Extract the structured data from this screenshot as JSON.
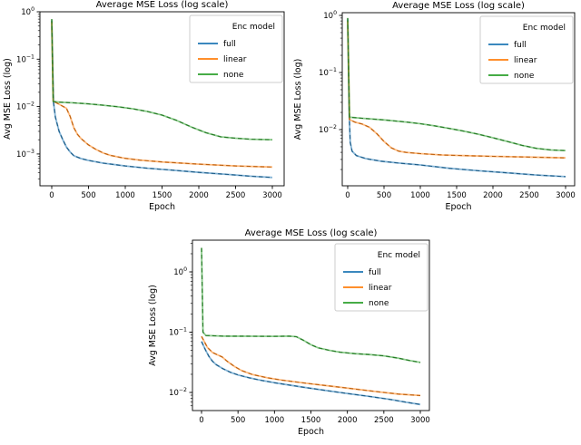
{
  "figure": {
    "background": "#ffffff"
  },
  "colors": {
    "full": "#1f77b4",
    "linear": "#ff7f0e",
    "none": "#2ca02c"
  },
  "chart_data": [
    {
      "type": "line",
      "title": "Average MSE Loss (log scale)",
      "xlabel": "Epoch",
      "ylabel": "Avg MSE Loss (log)",
      "yscale": "log",
      "grid": false,
      "xticks": [
        0,
        500,
        1000,
        1500,
        2000,
        2500,
        3000
      ],
      "ytick_exponents": [
        0,
        -1,
        -2,
        -3
      ],
      "xlim": [
        0,
        3000
      ],
      "ylim": [
        0.00021,
        1.0
      ],
      "legend": {
        "title": "Enc model",
        "position": "upper right"
      },
      "series": [
        {
          "name": "full",
          "color": "#1f77b4",
          "points": [
            [
              0,
              0.65
            ],
            [
              15,
              0.06
            ],
            [
              25,
              0.012
            ],
            [
              50,
              0.006
            ],
            [
              100,
              0.003
            ],
            [
              150,
              0.002
            ],
            [
              200,
              0.0014
            ],
            [
              250,
              0.0011
            ],
            [
              300,
              0.00092
            ],
            [
              400,
              0.0008
            ],
            [
              500,
              0.00073
            ],
            [
              700,
              0.00064
            ],
            [
              1000,
              0.00056
            ],
            [
              1300,
              0.0005
            ],
            [
              1600,
              0.00046
            ],
            [
              2000,
              0.00041
            ],
            [
              2400,
              0.00037
            ],
            [
              2700,
              0.00034
            ],
            [
              3000,
              0.00032
            ]
          ]
        },
        {
          "name": "linear",
          "color": "#ff7f0e",
          "points": [
            [
              0,
              0.62
            ],
            [
              20,
              0.013
            ],
            [
              100,
              0.0112
            ],
            [
              200,
              0.0092
            ],
            [
              250,
              0.0062
            ],
            [
              300,
              0.0036
            ],
            [
              350,
              0.0026
            ],
            [
              400,
              0.0021
            ],
            [
              500,
              0.00155
            ],
            [
              600,
              0.00125
            ],
            [
              700,
              0.00105
            ],
            [
              800,
              0.00093
            ],
            [
              1000,
              0.00081
            ],
            [
              1200,
              0.00074
            ],
            [
              1500,
              0.00068
            ],
            [
              2000,
              0.00061
            ],
            [
              2500,
              0.00056
            ],
            [
              3000,
              0.00053
            ]
          ]
        },
        {
          "name": "none",
          "color": "#2ca02c",
          "points": [
            [
              0,
              0.7
            ],
            [
              20,
              0.0128
            ],
            [
              100,
              0.0124
            ],
            [
              300,
              0.012
            ],
            [
              500,
              0.0114
            ],
            [
              700,
              0.0107
            ],
            [
              900,
              0.0099
            ],
            [
              1100,
              0.009
            ],
            [
              1300,
              0.0079
            ],
            [
              1500,
              0.0066
            ],
            [
              1700,
              0.0051
            ],
            [
              1900,
              0.0037
            ],
            [
              2100,
              0.0028
            ],
            [
              2300,
              0.0023
            ],
            [
              2500,
              0.00215
            ],
            [
              2700,
              0.00205
            ],
            [
              3000,
              0.002
            ]
          ]
        }
      ]
    },
    {
      "type": "line",
      "title": "Average MSE Loss (log scale)",
      "xlabel": "Epoch",
      "ylabel": "Avg MSE Loss (log)",
      "yscale": "log",
      "grid": false,
      "xticks": [
        0,
        500,
        1000,
        1500,
        2000,
        2500,
        3000
      ],
      "ytick_exponents": [
        0,
        -1,
        -2
      ],
      "xlim": [
        0,
        3000
      ],
      "ylim": [
        0.0011,
        1.1
      ],
      "legend": {
        "title": "Enc model",
        "position": "upper right"
      },
      "series": [
        {
          "name": "full",
          "color": "#1f77b4",
          "points": [
            [
              0,
              0.85
            ],
            [
              20,
              0.02
            ],
            [
              35,
              0.006
            ],
            [
              60,
              0.0042
            ],
            [
              120,
              0.0035
            ],
            [
              250,
              0.0031
            ],
            [
              450,
              0.0028
            ],
            [
              700,
              0.0026
            ],
            [
              1000,
              0.0024
            ],
            [
              1400,
              0.0021
            ],
            [
              1800,
              0.0019
            ],
            [
              2200,
              0.00175
            ],
            [
              2600,
              0.0016
            ],
            [
              3000,
              0.0015
            ]
          ]
        },
        {
          "name": "linear",
          "color": "#ff7f0e",
          "points": [
            [
              0,
              0.8
            ],
            [
              25,
              0.015
            ],
            [
              100,
              0.0135
            ],
            [
              200,
              0.0125
            ],
            [
              300,
              0.011
            ],
            [
              400,
              0.0085
            ],
            [
              500,
              0.0062
            ],
            [
              600,
              0.0048
            ],
            [
              700,
              0.0042
            ],
            [
              800,
              0.004
            ],
            [
              1000,
              0.0038
            ],
            [
              1300,
              0.0036
            ],
            [
              1600,
              0.0035
            ],
            [
              2000,
              0.0034
            ],
            [
              2500,
              0.0033
            ],
            [
              3000,
              0.0032
            ]
          ]
        },
        {
          "name": "none",
          "color": "#2ca02c",
          "points": [
            [
              0,
              0.9
            ],
            [
              25,
              0.0165
            ],
            [
              200,
              0.0158
            ],
            [
              500,
              0.0148
            ],
            [
              800,
              0.0136
            ],
            [
              1000,
              0.0127
            ],
            [
              1200,
              0.0116
            ],
            [
              1400,
              0.0105
            ],
            [
              1600,
              0.0094
            ],
            [
              1800,
              0.0083
            ],
            [
              2000,
              0.0072
            ],
            [
              2200,
              0.0062
            ],
            [
              2400,
              0.0053
            ],
            [
              2600,
              0.0047
            ],
            [
              2800,
              0.0044
            ],
            [
              3000,
              0.0043
            ]
          ]
        }
      ]
    },
    {
      "type": "line",
      "title": "Average MSE Loss (log scale)",
      "xlabel": "Epoch",
      "ylabel": "Avg MSE Loss (log)",
      "yscale": "log",
      "grid": false,
      "xticks": [
        0,
        500,
        1000,
        1500,
        2000,
        2500,
        3000
      ],
      "ytick_exponents": [
        0,
        -1,
        -2
      ],
      "xlim": [
        0,
        3000
      ],
      "ylim": [
        0.005,
        3.4
      ],
      "legend": {
        "title": "Enc model",
        "position": "upper right"
      },
      "series": [
        {
          "name": "full",
          "color": "#1f77b4",
          "points": [
            [
              0,
              0.07
            ],
            [
              50,
              0.052
            ],
            [
              100,
              0.04
            ],
            [
              150,
              0.033
            ],
            [
              200,
              0.029
            ],
            [
              300,
              0.0245
            ],
            [
              400,
              0.0215
            ],
            [
              500,
              0.0195
            ],
            [
              650,
              0.0175
            ],
            [
              800,
              0.016
            ],
            [
              1000,
              0.0145
            ],
            [
              1200,
              0.0133
            ],
            [
              1400,
              0.0122
            ],
            [
              1700,
              0.0108
            ],
            [
              2000,
              0.0096
            ],
            [
              2300,
              0.0086
            ],
            [
              2600,
              0.0076
            ],
            [
              2800,
              0.0069
            ],
            [
              3000,
              0.0063
            ]
          ]
        },
        {
          "name": "linear",
          "color": "#ff7f0e",
          "points": [
            [
              0,
              0.085
            ],
            [
              80,
              0.056
            ],
            [
              150,
              0.046
            ],
            [
              220,
              0.042
            ],
            [
              280,
              0.039
            ],
            [
              350,
              0.033
            ],
            [
              450,
              0.027
            ],
            [
              550,
              0.023
            ],
            [
              700,
              0.0198
            ],
            [
              900,
              0.0175
            ],
            [
              1100,
              0.016
            ],
            [
              1300,
              0.0149
            ],
            [
              1500,
              0.0139
            ],
            [
              1800,
              0.0126
            ],
            [
              2100,
              0.0114
            ],
            [
              2400,
              0.0103
            ],
            [
              2700,
              0.0094
            ],
            [
              3000,
              0.0089
            ]
          ]
        },
        {
          "name": "none",
          "color": "#2ca02c",
          "points": [
            [
              0,
              2.5
            ],
            [
              20,
              0.1
            ],
            [
              60,
              0.088
            ],
            [
              300,
              0.086
            ],
            [
              700,
              0.0855
            ],
            [
              1000,
              0.0852
            ],
            [
              1200,
              0.0858
            ],
            [
              1300,
              0.084
            ],
            [
              1400,
              0.073
            ],
            [
              1500,
              0.062
            ],
            [
              1600,
              0.055
            ],
            [
              1750,
              0.05
            ],
            [
              1900,
              0.0465
            ],
            [
              2100,
              0.044
            ],
            [
              2300,
              0.0425
            ],
            [
              2500,
              0.0405
            ],
            [
              2700,
              0.037
            ],
            [
              2850,
              0.034
            ],
            [
              3000,
              0.0315
            ]
          ]
        }
      ]
    }
  ]
}
